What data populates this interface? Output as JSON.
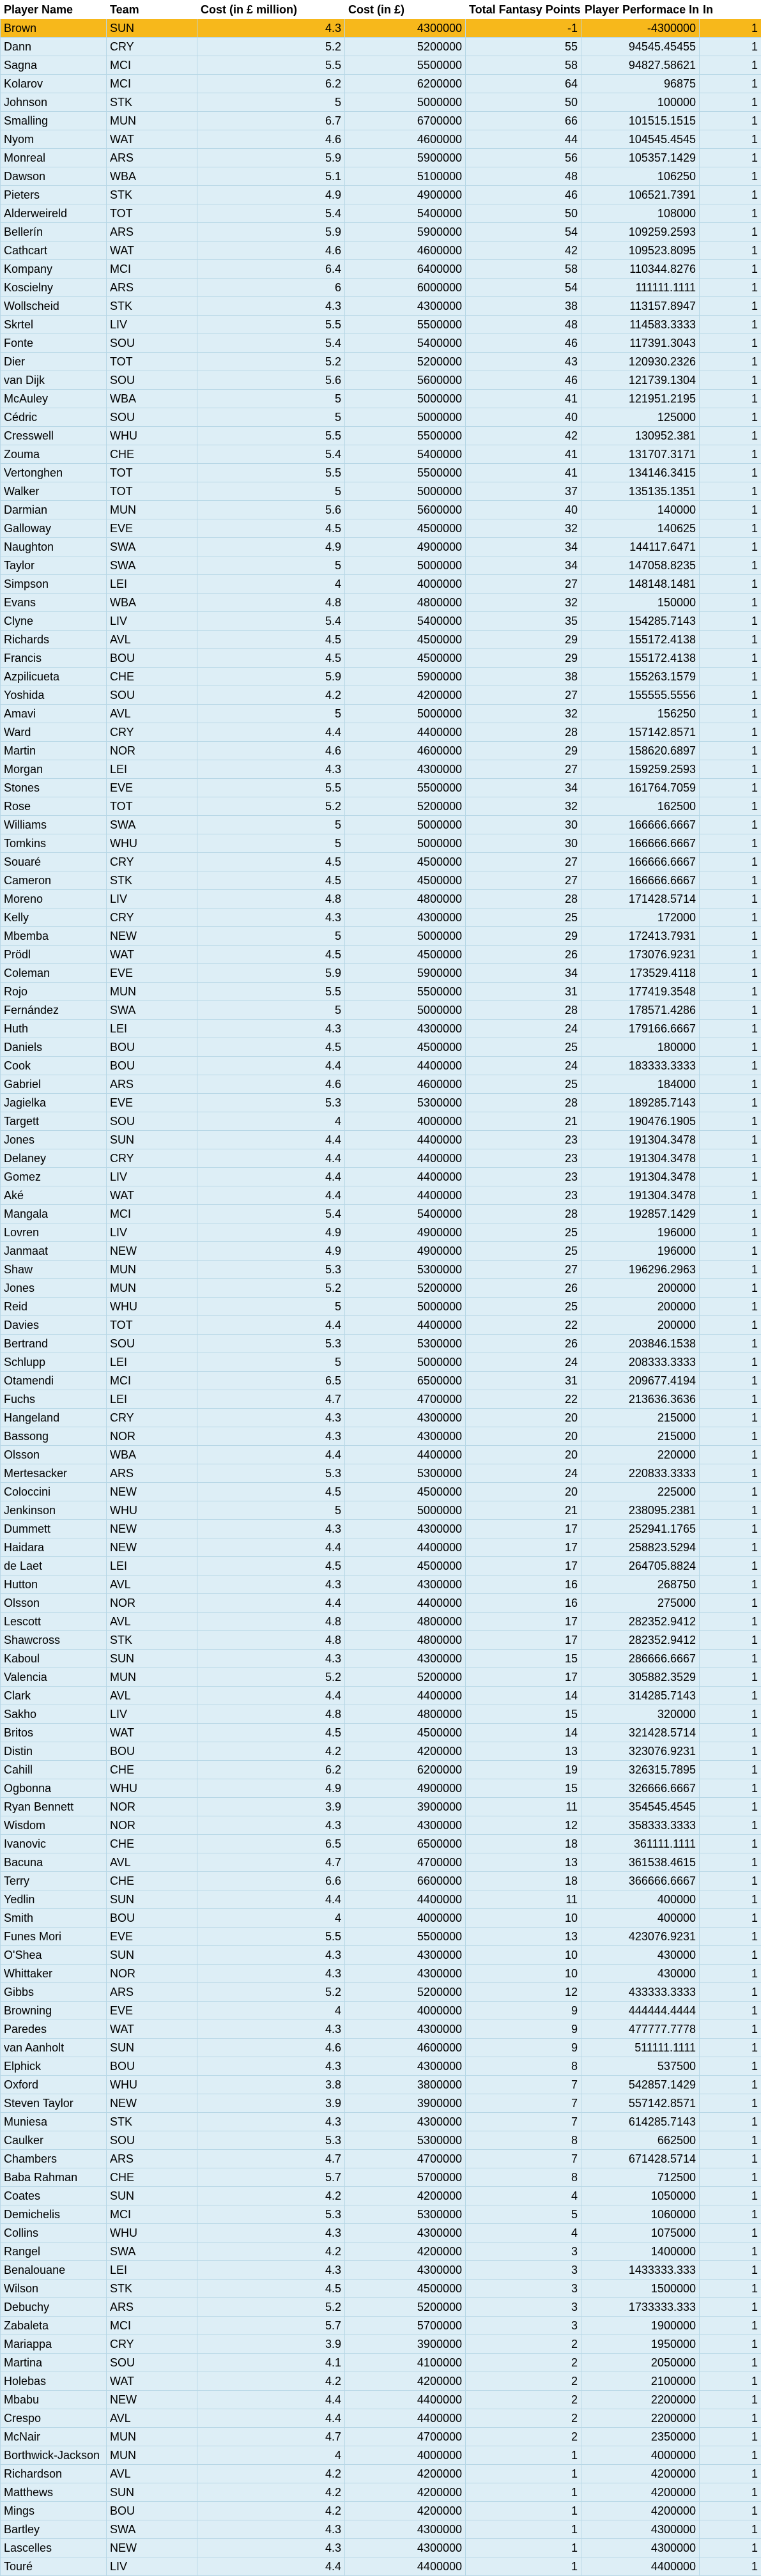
{
  "headers": [
    "Player Name",
    "Team",
    "Cost (in £ million)",
    "Cost (in £)",
    "Total Fantasy Points",
    "Player Performace Index",
    "In"
  ],
  "rows": [
    [
      "Brown",
      "SUN",
      "4.3",
      "4300000",
      "-1",
      "-4300000",
      "1"
    ],
    [
      "Dann",
      "CRY",
      "5.2",
      "5200000",
      "55",
      "94545.45455",
      "1"
    ],
    [
      "Sagna",
      "MCI",
      "5.5",
      "5500000",
      "58",
      "94827.58621",
      "1"
    ],
    [
      "Kolarov",
      "MCI",
      "6.2",
      "6200000",
      "64",
      "96875",
      "1"
    ],
    [
      "Johnson",
      "STK",
      "5",
      "5000000",
      "50",
      "100000",
      "1"
    ],
    [
      "Smalling",
      "MUN",
      "6.7",
      "6700000",
      "66",
      "101515.1515",
      "1"
    ],
    [
      "Nyom",
      "WAT",
      "4.6",
      "4600000",
      "44",
      "104545.4545",
      "1"
    ],
    [
      "Monreal",
      "ARS",
      "5.9",
      "5900000",
      "56",
      "105357.1429",
      "1"
    ],
    [
      "Dawson",
      "WBA",
      "5.1",
      "5100000",
      "48",
      "106250",
      "1"
    ],
    [
      "Pieters",
      "STK",
      "4.9",
      "4900000",
      "46",
      "106521.7391",
      "1"
    ],
    [
      "Alderweireld",
      "TOT",
      "5.4",
      "5400000",
      "50",
      "108000",
      "1"
    ],
    [
      "Bellerín",
      "ARS",
      "5.9",
      "5900000",
      "54",
      "109259.2593",
      "1"
    ],
    [
      "Cathcart",
      "WAT",
      "4.6",
      "4600000",
      "42",
      "109523.8095",
      "1"
    ],
    [
      "Kompany",
      "MCI",
      "6.4",
      "6400000",
      "58",
      "110344.8276",
      "1"
    ],
    [
      "Koscielny",
      "ARS",
      "6",
      "6000000",
      "54",
      "111111.1111",
      "1"
    ],
    [
      "Wollscheid",
      "STK",
      "4.3",
      "4300000",
      "38",
      "113157.8947",
      "1"
    ],
    [
      "Skrtel",
      "LIV",
      "5.5",
      "5500000",
      "48",
      "114583.3333",
      "1"
    ],
    [
      "Fonte",
      "SOU",
      "5.4",
      "5400000",
      "46",
      "117391.3043",
      "1"
    ],
    [
      "Dier",
      "TOT",
      "5.2",
      "5200000",
      "43",
      "120930.2326",
      "1"
    ],
    [
      "van Dijk",
      "SOU",
      "5.6",
      "5600000",
      "46",
      "121739.1304",
      "1"
    ],
    [
      "McAuley",
      "WBA",
      "5",
      "5000000",
      "41",
      "121951.2195",
      "1"
    ],
    [
      "Cédric",
      "SOU",
      "5",
      "5000000",
      "40",
      "125000",
      "1"
    ],
    [
      "Cresswell",
      "WHU",
      "5.5",
      "5500000",
      "42",
      "130952.381",
      "1"
    ],
    [
      "Zouma",
      "CHE",
      "5.4",
      "5400000",
      "41",
      "131707.3171",
      "1"
    ],
    [
      "Vertonghen",
      "TOT",
      "5.5",
      "5500000",
      "41",
      "134146.3415",
      "1"
    ],
    [
      "Walker",
      "TOT",
      "5",
      "5000000",
      "37",
      "135135.1351",
      "1"
    ],
    [
      "Darmian",
      "MUN",
      "5.6",
      "5600000",
      "40",
      "140000",
      "1"
    ],
    [
      "Galloway",
      "EVE",
      "4.5",
      "4500000",
      "32",
      "140625",
      "1"
    ],
    [
      "Naughton",
      "SWA",
      "4.9",
      "4900000",
      "34",
      "144117.6471",
      "1"
    ],
    [
      "Taylor",
      "SWA",
      "5",
      "5000000",
      "34",
      "147058.8235",
      "1"
    ],
    [
      "Simpson",
      "LEI",
      "4",
      "4000000",
      "27",
      "148148.1481",
      "1"
    ],
    [
      "Evans",
      "WBA",
      "4.8",
      "4800000",
      "32",
      "150000",
      "1"
    ],
    [
      "Clyne",
      "LIV",
      "5.4",
      "5400000",
      "35",
      "154285.7143",
      "1"
    ],
    [
      "Richards",
      "AVL",
      "4.5",
      "4500000",
      "29",
      "155172.4138",
      "1"
    ],
    [
      "Francis",
      "BOU",
      "4.5",
      "4500000",
      "29",
      "155172.4138",
      "1"
    ],
    [
      "Azpilicueta",
      "CHE",
      "5.9",
      "5900000",
      "38",
      "155263.1579",
      "1"
    ],
    [
      "Yoshida",
      "SOU",
      "4.2",
      "4200000",
      "27",
      "155555.5556",
      "1"
    ],
    [
      "Amavi",
      "AVL",
      "5",
      "5000000",
      "32",
      "156250",
      "1"
    ],
    [
      "Ward",
      "CRY",
      "4.4",
      "4400000",
      "28",
      "157142.8571",
      "1"
    ],
    [
      "Martin",
      "NOR",
      "4.6",
      "4600000",
      "29",
      "158620.6897",
      "1"
    ],
    [
      "Morgan",
      "LEI",
      "4.3",
      "4300000",
      "27",
      "159259.2593",
      "1"
    ],
    [
      "Stones",
      "EVE",
      "5.5",
      "5500000",
      "34",
      "161764.7059",
      "1"
    ],
    [
      "Rose",
      "TOT",
      "5.2",
      "5200000",
      "32",
      "162500",
      "1"
    ],
    [
      "Williams",
      "SWA",
      "5",
      "5000000",
      "30",
      "166666.6667",
      "1"
    ],
    [
      "Tomkins",
      "WHU",
      "5",
      "5000000",
      "30",
      "166666.6667",
      "1"
    ],
    [
      "Souaré",
      "CRY",
      "4.5",
      "4500000",
      "27",
      "166666.6667",
      "1"
    ],
    [
      "Cameron",
      "STK",
      "4.5",
      "4500000",
      "27",
      "166666.6667",
      "1"
    ],
    [
      "Moreno",
      "LIV",
      "4.8",
      "4800000",
      "28",
      "171428.5714",
      "1"
    ],
    [
      "Kelly",
      "CRY",
      "4.3",
      "4300000",
      "25",
      "172000",
      "1"
    ],
    [
      "Mbemba",
      "NEW",
      "5",
      "5000000",
      "29",
      "172413.7931",
      "1"
    ],
    [
      "Prödl",
      "WAT",
      "4.5",
      "4500000",
      "26",
      "173076.9231",
      "1"
    ],
    [
      "Coleman",
      "EVE",
      "5.9",
      "5900000",
      "34",
      "173529.4118",
      "1"
    ],
    [
      "Rojo",
      "MUN",
      "5.5",
      "5500000",
      "31",
      "177419.3548",
      "1"
    ],
    [
      "Fernández",
      "SWA",
      "5",
      "5000000",
      "28",
      "178571.4286",
      "1"
    ],
    [
      "Huth",
      "LEI",
      "4.3",
      "4300000",
      "24",
      "179166.6667",
      "1"
    ],
    [
      "Daniels",
      "BOU",
      "4.5",
      "4500000",
      "25",
      "180000",
      "1"
    ],
    [
      "Cook",
      "BOU",
      "4.4",
      "4400000",
      "24",
      "183333.3333",
      "1"
    ],
    [
      "Gabriel",
      "ARS",
      "4.6",
      "4600000",
      "25",
      "184000",
      "1"
    ],
    [
      "Jagielka",
      "EVE",
      "5.3",
      "5300000",
      "28",
      "189285.7143",
      "1"
    ],
    [
      "Targett",
      "SOU",
      "4",
      "4000000",
      "21",
      "190476.1905",
      "1"
    ],
    [
      "Jones",
      "SUN",
      "4.4",
      "4400000",
      "23",
      "191304.3478",
      "1"
    ],
    [
      "Delaney",
      "CRY",
      "4.4",
      "4400000",
      "23",
      "191304.3478",
      "1"
    ],
    [
      "Gomez",
      "LIV",
      "4.4",
      "4400000",
      "23",
      "191304.3478",
      "1"
    ],
    [
      "Aké",
      "WAT",
      "4.4",
      "4400000",
      "23",
      "191304.3478",
      "1"
    ],
    [
      "Mangala",
      "MCI",
      "5.4",
      "5400000",
      "28",
      "192857.1429",
      "1"
    ],
    [
      "Lovren",
      "LIV",
      "4.9",
      "4900000",
      "25",
      "196000",
      "1"
    ],
    [
      "Janmaat",
      "NEW",
      "4.9",
      "4900000",
      "25",
      "196000",
      "1"
    ],
    [
      "Shaw",
      "MUN",
      "5.3",
      "5300000",
      "27",
      "196296.2963",
      "1"
    ],
    [
      "Jones",
      "MUN",
      "5.2",
      "5200000",
      "26",
      "200000",
      "1"
    ],
    [
      "Reid",
      "WHU",
      "5",
      "5000000",
      "25",
      "200000",
      "1"
    ],
    [
      "Davies",
      "TOT",
      "4.4",
      "4400000",
      "22",
      "200000",
      "1"
    ],
    [
      "Bertrand",
      "SOU",
      "5.3",
      "5300000",
      "26",
      "203846.1538",
      "1"
    ],
    [
      "Schlupp",
      "LEI",
      "5",
      "5000000",
      "24",
      "208333.3333",
      "1"
    ],
    [
      "Otamendi",
      "MCI",
      "6.5",
      "6500000",
      "31",
      "209677.4194",
      "1"
    ],
    [
      "Fuchs",
      "LEI",
      "4.7",
      "4700000",
      "22",
      "213636.3636",
      "1"
    ],
    [
      "Hangeland",
      "CRY",
      "4.3",
      "4300000",
      "20",
      "215000",
      "1"
    ],
    [
      "Bassong",
      "NOR",
      "4.3",
      "4300000",
      "20",
      "215000",
      "1"
    ],
    [
      "Olsson",
      "WBA",
      "4.4",
      "4400000",
      "20",
      "220000",
      "1"
    ],
    [
      "Mertesacker",
      "ARS",
      "5.3",
      "5300000",
      "24",
      "220833.3333",
      "1"
    ],
    [
      "Coloccini",
      "NEW",
      "4.5",
      "4500000",
      "20",
      "225000",
      "1"
    ],
    [
      "Jenkinson",
      "WHU",
      "5",
      "5000000",
      "21",
      "238095.2381",
      "1"
    ],
    [
      "Dummett",
      "NEW",
      "4.3",
      "4300000",
      "17",
      "252941.1765",
      "1"
    ],
    [
      "Haidara",
      "NEW",
      "4.4",
      "4400000",
      "17",
      "258823.5294",
      "1"
    ],
    [
      "de Laet",
      "LEI",
      "4.5",
      "4500000",
      "17",
      "264705.8824",
      "1"
    ],
    [
      "Hutton",
      "AVL",
      "4.3",
      "4300000",
      "16",
      "268750",
      "1"
    ],
    [
      "Olsson",
      "NOR",
      "4.4",
      "4400000",
      "16",
      "275000",
      "1"
    ],
    [
      "Lescott",
      "AVL",
      "4.8",
      "4800000",
      "17",
      "282352.9412",
      "1"
    ],
    [
      "Shawcross",
      "STK",
      "4.8",
      "4800000",
      "17",
      "282352.9412",
      "1"
    ],
    [
      "Kaboul",
      "SUN",
      "4.3",
      "4300000",
      "15",
      "286666.6667",
      "1"
    ],
    [
      "Valencia",
      "MUN",
      "5.2",
      "5200000",
      "17",
      "305882.3529",
      "1"
    ],
    [
      "Clark",
      "AVL",
      "4.4",
      "4400000",
      "14",
      "314285.7143",
      "1"
    ],
    [
      "Sakho",
      "LIV",
      "4.8",
      "4800000",
      "15",
      "320000",
      "1"
    ],
    [
      "Britos",
      "WAT",
      "4.5",
      "4500000",
      "14",
      "321428.5714",
      "1"
    ],
    [
      "Distin",
      "BOU",
      "4.2",
      "4200000",
      "13",
      "323076.9231",
      "1"
    ],
    [
      "Cahill",
      "CHE",
      "6.2",
      "6200000",
      "19",
      "326315.7895",
      "1"
    ],
    [
      "Ogbonna",
      "WHU",
      "4.9",
      "4900000",
      "15",
      "326666.6667",
      "1"
    ],
    [
      "Ryan Bennett",
      "NOR",
      "3.9",
      "3900000",
      "11",
      "354545.4545",
      "1"
    ],
    [
      "Wisdom",
      "NOR",
      "4.3",
      "4300000",
      "12",
      "358333.3333",
      "1"
    ],
    [
      "Ivanovic",
      "CHE",
      "6.5",
      "6500000",
      "18",
      "361111.1111",
      "1"
    ],
    [
      "Bacuna",
      "AVL",
      "4.7",
      "4700000",
      "13",
      "361538.4615",
      "1"
    ],
    [
      "Terry",
      "CHE",
      "6.6",
      "6600000",
      "18",
      "366666.6667",
      "1"
    ],
    [
      "Yedlin",
      "SUN",
      "4.4",
      "4400000",
      "11",
      "400000",
      "1"
    ],
    [
      "Smith",
      "BOU",
      "4",
      "4000000",
      "10",
      "400000",
      "1"
    ],
    [
      "Funes Mori",
      "EVE",
      "5.5",
      "5500000",
      "13",
      "423076.9231",
      "1"
    ],
    [
      "O'Shea",
      "SUN",
      "4.3",
      "4300000",
      "10",
      "430000",
      "1"
    ],
    [
      "Whittaker",
      "NOR",
      "4.3",
      "4300000",
      "10",
      "430000",
      "1"
    ],
    [
      "Gibbs",
      "ARS",
      "5.2",
      "5200000",
      "12",
      "433333.3333",
      "1"
    ],
    [
      "Browning",
      "EVE",
      "4",
      "4000000",
      "9",
      "444444.4444",
      "1"
    ],
    [
      "Paredes",
      "WAT",
      "4.3",
      "4300000",
      "9",
      "477777.7778",
      "1"
    ],
    [
      "van Aanholt",
      "SUN",
      "4.6",
      "4600000",
      "9",
      "511111.1111",
      "1"
    ],
    [
      "Elphick",
      "BOU",
      "4.3",
      "4300000",
      "8",
      "537500",
      "1"
    ],
    [
      "Oxford",
      "WHU",
      "3.8",
      "3800000",
      "7",
      "542857.1429",
      "1"
    ],
    [
      "Steven Taylor",
      "NEW",
      "3.9",
      "3900000",
      "7",
      "557142.8571",
      "1"
    ],
    [
      "Muniesa",
      "STK",
      "4.3",
      "4300000",
      "7",
      "614285.7143",
      "1"
    ],
    [
      "Caulker",
      "SOU",
      "5.3",
      "5300000",
      "8",
      "662500",
      "1"
    ],
    [
      "Chambers",
      "ARS",
      "4.7",
      "4700000",
      "7",
      "671428.5714",
      "1"
    ],
    [
      "Baba Rahman",
      "CHE",
      "5.7",
      "5700000",
      "8",
      "712500",
      "1"
    ],
    [
      "Coates",
      "SUN",
      "4.2",
      "4200000",
      "4",
      "1050000",
      "1"
    ],
    [
      "Demichelis",
      "MCI",
      "5.3",
      "5300000",
      "5",
      "1060000",
      "1"
    ],
    [
      "Collins",
      "WHU",
      "4.3",
      "4300000",
      "4",
      "1075000",
      "1"
    ],
    [
      "Rangel",
      "SWA",
      "4.2",
      "4200000",
      "3",
      "1400000",
      "1"
    ],
    [
      "Benalouane",
      "LEI",
      "4.3",
      "4300000",
      "3",
      "1433333.333",
      "1"
    ],
    [
      "Wilson",
      "STK",
      "4.5",
      "4500000",
      "3",
      "1500000",
      "1"
    ],
    [
      "Debuchy",
      "ARS",
      "5.2",
      "5200000",
      "3",
      "1733333.333",
      "1"
    ],
    [
      "Zabaleta",
      "MCI",
      "5.7",
      "5700000",
      "3",
      "1900000",
      "1"
    ],
    [
      "Mariappa",
      "CRY",
      "3.9",
      "3900000",
      "2",
      "1950000",
      "1"
    ],
    [
      "Martina",
      "SOU",
      "4.1",
      "4100000",
      "2",
      "2050000",
      "1"
    ],
    [
      "Holebas",
      "WAT",
      "4.2",
      "4200000",
      "2",
      "2100000",
      "1"
    ],
    [
      "Mbabu",
      "NEW",
      "4.4",
      "4400000",
      "2",
      "2200000",
      "1"
    ],
    [
      "Crespo",
      "AVL",
      "4.4",
      "4400000",
      "2",
      "2200000",
      "1"
    ],
    [
      "McNair",
      "MUN",
      "4.7",
      "4700000",
      "2",
      "2350000",
      "1"
    ],
    [
      "Borthwick-Jackson",
      "MUN",
      "4",
      "4000000",
      "1",
      "4000000",
      "1"
    ],
    [
      "Richardson",
      "AVL",
      "4.2",
      "4200000",
      "1",
      "4200000",
      "1"
    ],
    [
      "Matthews",
      "SUN",
      "4.2",
      "4200000",
      "1",
      "4200000",
      "1"
    ],
    [
      "Mings",
      "BOU",
      "4.2",
      "4200000",
      "1",
      "4200000",
      "1"
    ],
    [
      "Bartley",
      "SWA",
      "4.3",
      "4300000",
      "1",
      "4300000",
      "1"
    ],
    [
      "Lascelles",
      "NEW",
      "4.3",
      "4300000",
      "1",
      "4300000",
      "1"
    ],
    [
      "Touré",
      "LIV",
      "4.4",
      "4400000",
      "1",
      "4400000",
      "1"
    ]
  ],
  "selected_row": 0,
  "colors": {
    "selected": "#f7b81b",
    "row": "#ddeef6",
    "grid": "#b7d7e6"
  }
}
